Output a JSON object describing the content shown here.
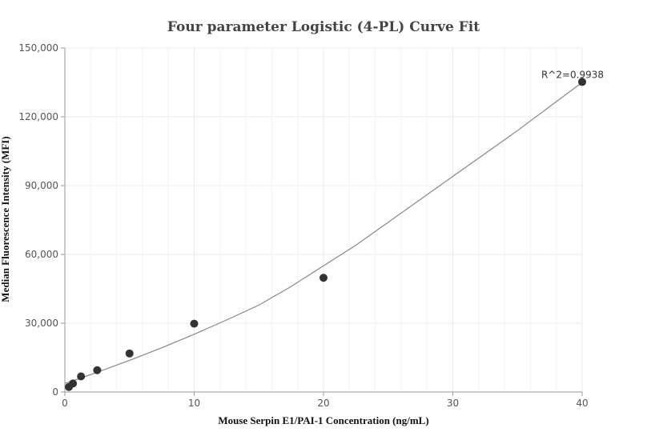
{
  "chart_data": {
    "type": "scatter",
    "title": "Four parameter Logistic (4-PL) Curve Fit",
    "xlabel": "Mouse Serpin E1/PAI-1 Concentration (ng/mL)",
    "ylabel": "Median Fluorescence Intensity (MFI)",
    "xlim": [
      0,
      40
    ],
    "ylim": [
      0,
      150000
    ],
    "x_ticks": [
      0,
      10,
      20,
      30,
      40
    ],
    "x_tick_labels": [
      "0",
      "10",
      "20",
      "30",
      "40"
    ],
    "y_ticks": [
      0,
      30000,
      60000,
      90000,
      120000,
      150000
    ],
    "y_tick_labels": [
      "0",
      "30,000",
      "60,000",
      "90,000",
      "120,000",
      "150,000"
    ],
    "grid": true,
    "legend": "none",
    "series": [
      {
        "type": "scatter",
        "x": [
          0.3125,
          0.625,
          1.25,
          2.5,
          5,
          10,
          20,
          40
        ],
        "y": [
          2200,
          3700,
          6800,
          9500,
          16800,
          29800,
          49800,
          135200
        ]
      },
      {
        "type": "line",
        "x": [
          0,
          0.3125,
          0.625,
          1.25,
          2.5,
          5,
          7.5,
          10,
          12.5,
          15,
          17.5,
          20,
          22.5,
          25,
          27.5,
          30,
          32.5,
          35,
          37.5,
          40
        ],
        "y": [
          3800,
          4300,
          4900,
          6100,
          8600,
          13800,
          19300,
          25200,
          31400,
          37900,
          46000,
          55000,
          64000,
          74000,
          84000,
          94000,
          104000,
          114000,
          124500,
          135000
        ]
      }
    ],
    "annotation": "R^2=0.9938",
    "colors": {
      "points": "#333333",
      "fit_line": "#888888",
      "grid": "#ebebeb",
      "axis": "#999999",
      "title": "#444444"
    }
  }
}
